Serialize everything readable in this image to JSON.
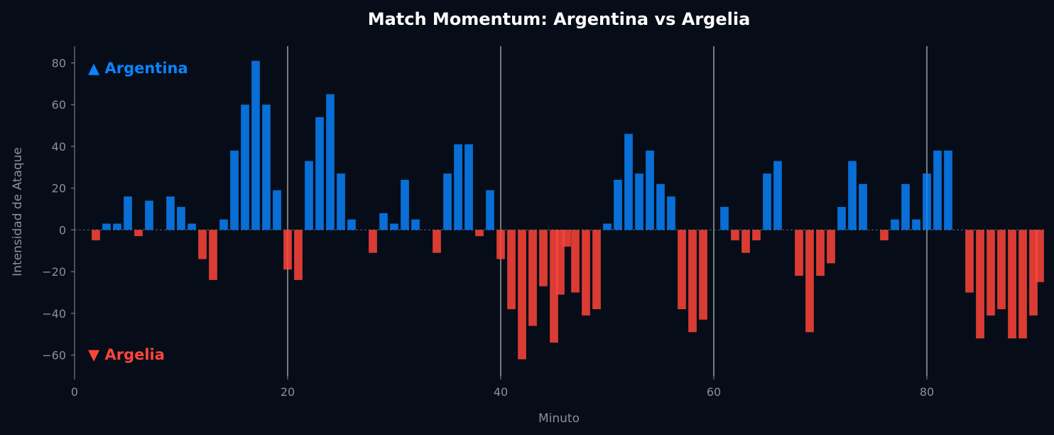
{
  "chart_data": {
    "type": "bar",
    "title": "Match Momentum: Argentina vs Argelia",
    "xlabel": "Minuto",
    "ylabel": "Intensidad de Ataque",
    "xlim": [
      0,
      91
    ],
    "ylim": [
      -70,
      88
    ],
    "xticks": [
      0,
      20,
      40,
      60,
      80
    ],
    "yticks": [
      -60,
      -40,
      -20,
      0,
      20,
      40,
      60,
      80
    ],
    "vlines": [
      20,
      40,
      60,
      80
    ],
    "grid": false,
    "legend_position": "top-left / bottom-left",
    "series": [
      {
        "name": "▲ Argentina",
        "color": "#0a84ff",
        "points": [
          [
            3,
            3
          ],
          [
            4,
            3
          ],
          [
            5,
            16
          ],
          [
            7,
            14
          ],
          [
            9,
            16
          ],
          [
            10,
            11
          ],
          [
            11,
            3
          ],
          [
            14,
            5
          ],
          [
            15,
            38
          ],
          [
            16,
            60
          ],
          [
            17,
            81
          ],
          [
            18,
            60
          ],
          [
            19,
            19
          ],
          [
            22,
            33
          ],
          [
            23,
            54
          ],
          [
            24,
            65
          ],
          [
            25,
            27
          ],
          [
            26,
            5
          ],
          [
            29,
            8
          ],
          [
            30,
            3
          ],
          [
            31,
            24
          ],
          [
            32,
            5
          ],
          [
            35,
            27
          ],
          [
            36,
            41
          ],
          [
            37,
            41
          ],
          [
            39,
            19
          ],
          [
            50,
            3
          ],
          [
            51,
            24
          ],
          [
            52,
            46
          ],
          [
            53,
            27
          ],
          [
            54,
            38
          ],
          [
            55,
            22
          ],
          [
            56,
            16
          ],
          [
            61,
            11
          ],
          [
            65,
            27
          ],
          [
            66,
            33
          ],
          [
            72,
            11
          ],
          [
            73,
            33
          ],
          [
            74,
            22
          ],
          [
            77,
            5
          ],
          [
            78,
            22
          ],
          [
            79,
            5
          ],
          [
            80,
            27
          ],
          [
            81,
            38
          ],
          [
            82,
            38
          ]
        ]
      },
      {
        "name": "▼ Argelia",
        "color": "#ff453a",
        "points": [
          [
            2,
            -5
          ],
          [
            6,
            -3
          ],
          [
            12,
            -14
          ],
          [
            13,
            -24
          ],
          [
            20,
            -19
          ],
          [
            21,
            -24
          ],
          [
            28,
            -11
          ],
          [
            34,
            -11
          ],
          [
            38,
            -3
          ],
          [
            40,
            -14
          ],
          [
            41,
            -38
          ],
          [
            42,
            -62
          ],
          [
            43,
            -46
          ],
          [
            44,
            -27
          ],
          [
            45,
            -54
          ],
          [
            45.6,
            -31
          ],
          [
            46.2,
            -8
          ],
          [
            47,
            -30
          ],
          [
            48,
            -41
          ],
          [
            49,
            -38
          ],
          [
            57,
            -38
          ],
          [
            58,
            -49
          ],
          [
            59,
            -43
          ],
          [
            62,
            -5
          ],
          [
            63,
            -11
          ],
          [
            64,
            -5
          ],
          [
            68,
            -22
          ],
          [
            69,
            -49
          ],
          [
            70,
            -22
          ],
          [
            71,
            -16
          ],
          [
            76,
            -5
          ],
          [
            84,
            -30
          ],
          [
            85,
            -52
          ],
          [
            86,
            -41
          ],
          [
            87,
            -38
          ],
          [
            88,
            -52
          ],
          [
            89,
            -52
          ],
          [
            90,
            -41
          ],
          [
            90.6,
            -25
          ]
        ]
      }
    ]
  }
}
